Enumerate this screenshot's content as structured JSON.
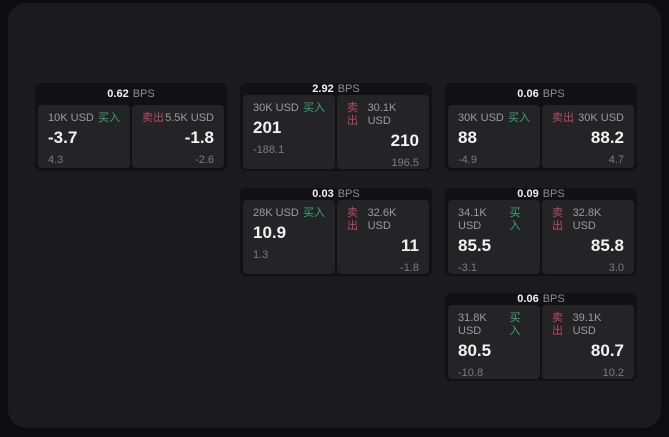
{
  "theme": {
    "page_bg": "#0d0d0f",
    "panel_bg": "#1b1b1d",
    "card_bg": "#121214",
    "subcard_bg": "#242427",
    "text_primary": "#f2f2f2",
    "text_secondary": "#9c9c9c",
    "text_tertiary": "#7c7c7c",
    "buy_green": "#35a974",
    "sell_red": "#b84a60"
  },
  "labels": {
    "bps": "BPS",
    "buy": "买入",
    "sell": "卖出"
  },
  "cards": [
    {
      "bps": "0.62",
      "buy": {
        "amount": "10K USD",
        "price": "-3.7",
        "delta": "4.3"
      },
      "sell": {
        "amount": "5.5K USD",
        "price": "-1.8",
        "delta": "-2.6"
      }
    },
    {
      "bps": "2.92",
      "buy": {
        "amount": "30K USD",
        "price": "201",
        "delta": "-188.1"
      },
      "sell": {
        "amount": "30.1K USD",
        "price": "210",
        "delta": "196.5"
      }
    },
    {
      "bps": "0.06",
      "buy": {
        "amount": "30K USD",
        "price": "88",
        "delta": "-4.9"
      },
      "sell": {
        "amount": "30K USD",
        "price": "88.2",
        "delta": "4.7"
      }
    },
    {
      "bps": "0.03",
      "buy": {
        "amount": "28K USD",
        "price": "10.9",
        "delta": "1.3"
      },
      "sell": {
        "amount": "32.6K USD",
        "price": "11",
        "delta": "-1.8"
      }
    },
    {
      "bps": "0.09",
      "buy": {
        "amount": "34.1K USD",
        "price": "85.5",
        "delta": "-3.1"
      },
      "sell": {
        "amount": "32.8K USD",
        "price": "85.8",
        "delta": "3.0"
      }
    },
    {
      "bps": "0.06",
      "buy": {
        "amount": "31.8K USD",
        "price": "80.5",
        "delta": "-10.8"
      },
      "sell": {
        "amount": "39.1K USD",
        "price": "80.7",
        "delta": "10.2"
      }
    }
  ]
}
